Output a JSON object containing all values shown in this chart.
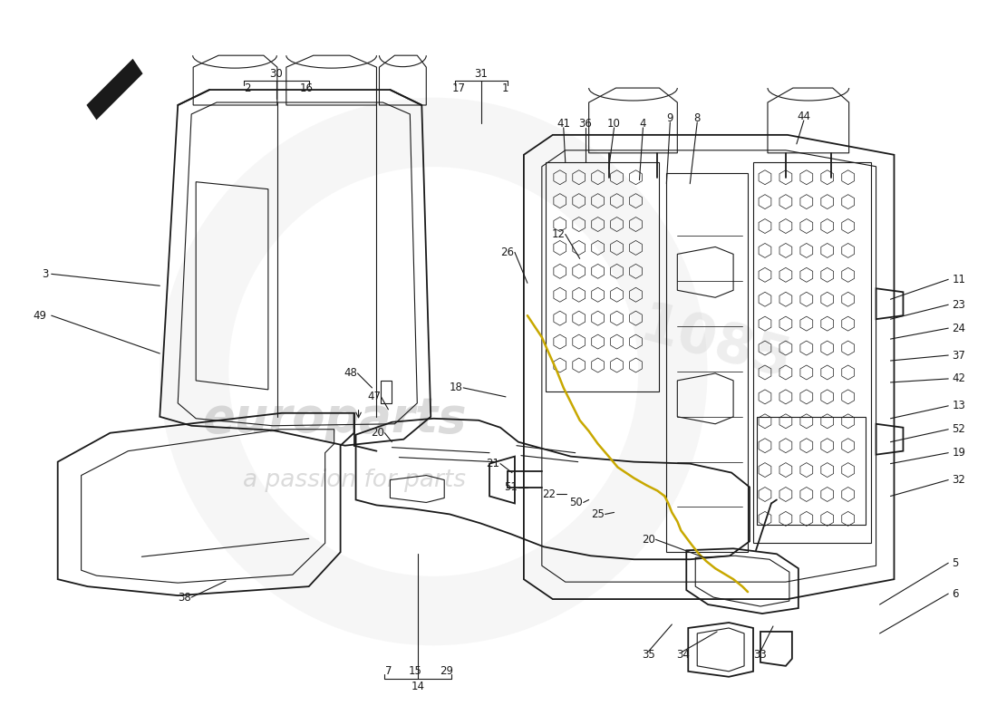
{
  "bg_color": "#ffffff",
  "line_color": "#1a1a1a",
  "fig_width": 11.0,
  "fig_height": 8.0,
  "dpi": 100
}
